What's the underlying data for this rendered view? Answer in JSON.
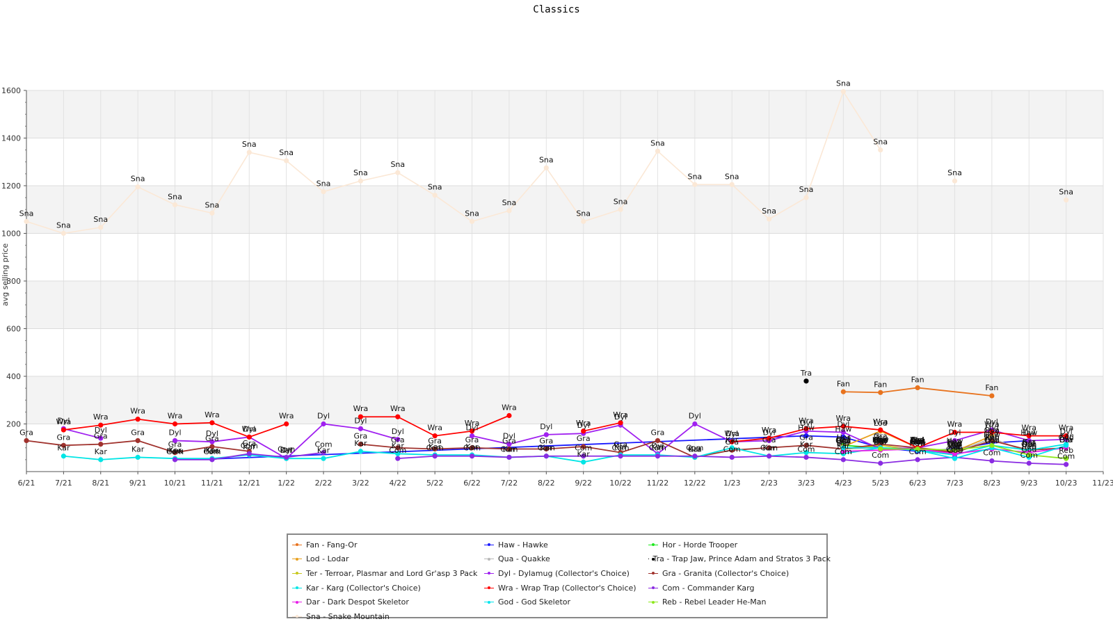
{
  "chart_data": {
    "type": "line",
    "title": "Classics",
    "xlabel": "",
    "ylabel": "avg selling price",
    "ylim": [
      0,
      1600
    ],
    "yticks": [
      200,
      400,
      600,
      800,
      1000,
      1200,
      1400,
      1600
    ],
    "xticks": [
      "6/21",
      "7/21",
      "8/21",
      "9/21",
      "10/21",
      "11/21",
      "12/21",
      "1/22",
      "2/22",
      "3/22",
      "4/22",
      "5/22",
      "6/22",
      "7/22",
      "8/22",
      "9/22",
      "10/22",
      "11/22",
      "12/22",
      "1/23",
      "2/23",
      "3/23",
      "4/23",
      "5/23",
      "6/23",
      "7/23",
      "8/23",
      "9/23",
      "10/23",
      "11/23"
    ],
    "grid": true,
    "legend_position": "bottom",
    "series": [
      {
        "name": "Fan - Fang-Or",
        "label": "Fan",
        "color": "#e8731e",
        "points": [
          [
            22,
            335
          ],
          [
            23,
            332
          ],
          [
            24,
            352
          ],
          [
            26,
            318
          ]
        ]
      },
      {
        "name": "Haw - Hawke",
        "label": "Haw",
        "color": "#1a1aff",
        "points": [
          [
            4,
            53
          ],
          [
            5,
            53
          ],
          [
            21,
            150
          ],
          [
            22,
            145
          ],
          [
            23,
            100
          ],
          [
            24,
            85
          ],
          [
            25,
            95
          ],
          [
            26,
            120
          ],
          [
            27,
            130
          ]
        ]
      },
      {
        "name": "Hor - Horde Trooper",
        "label": "Hor",
        "color": "#1ee81e",
        "points": [
          [
            22,
            110
          ],
          [
            23,
            100
          ],
          [
            24,
            90
          ],
          [
            25,
            85
          ]
        ]
      },
      {
        "name": "Lod - Lodar",
        "label": "Lod",
        "color": "#e8a01e",
        "points": [
          [
            22,
            105
          ],
          [
            23,
            170
          ],
          [
            24,
            100
          ],
          [
            25,
            85
          ],
          [
            26,
            150
          ]
        ]
      },
      {
        "name": "Qua - Quakke",
        "label": "Qua",
        "color": "#b8b8b8",
        "points": [
          [
            22,
            95
          ],
          [
            23,
            100
          ],
          [
            24,
            95
          ],
          [
            25,
            80
          ],
          [
            26,
            140
          ],
          [
            27,
            80
          ]
        ]
      },
      {
        "name": "Tra - Trap Jaw, Prince Adam and Stratos 3 Pack",
        "label": "Tra",
        "color": "#000000",
        "points": [
          [
            21,
            380
          ]
        ]
      },
      {
        "name": "Ter - Terroar, Plasmar and Lord Gr'asp 3 Pack",
        "label": "Ter",
        "color": "#c8c81e",
        "points": [
          [
            22,
            95
          ],
          [
            23,
            110
          ],
          [
            24,
            90
          ],
          [
            25,
            70
          ]
        ]
      },
      {
        "name": "Dyl - Dylamug (Collector's Choice)",
        "label": "Dyl",
        "color": "#a020f0",
        "points": [
          [
            1,
            180
          ],
          [
            2,
            140
          ],
          [
            3,
            null
          ],
          [
            4,
            130
          ],
          [
            5,
            125
          ],
          [
            6,
            145
          ],
          [
            7,
            55
          ],
          [
            8,
            200
          ],
          [
            9,
            180
          ],
          [
            10,
            135
          ],
          [
            11,
            null
          ],
          [
            12,
            150
          ],
          [
            13,
            115
          ],
          [
            14,
            155
          ],
          [
            15,
            160
          ],
          [
            16,
            195
          ],
          [
            17,
            75
          ],
          [
            18,
            200
          ],
          [
            19,
            125
          ],
          [
            20,
            130
          ],
          [
            21,
            170
          ],
          [
            22,
            165
          ],
          [
            23,
            95
          ],
          [
            24,
            100
          ],
          [
            25,
            130
          ],
          [
            26,
            175
          ],
          [
            27,
            130
          ],
          [
            28,
            135
          ]
        ]
      },
      {
        "name": "Gra - Granita (Collector's Choice)",
        "label": "Gra",
        "color": "#a0322d",
        "points": [
          [
            0,
            130
          ],
          [
            1,
            110
          ],
          [
            2,
            115
          ],
          [
            3,
            130
          ],
          [
            4,
            80
          ],
          [
            5,
            105
          ],
          [
            6,
            85
          ],
          [
            7,
            null
          ],
          [
            8,
            null
          ],
          [
            9,
            115
          ],
          [
            10,
            100
          ],
          [
            11,
            95
          ],
          [
            12,
            100
          ],
          [
            13,
            95
          ],
          [
            14,
            95
          ],
          [
            15,
            105
          ],
          [
            16,
            80
          ],
          [
            17,
            130
          ],
          [
            18,
            60
          ],
          [
            19,
            90
          ],
          [
            20,
            100
          ],
          [
            21,
            110
          ],
          [
            22,
            95
          ],
          [
            23,
            115
          ],
          [
            24,
            100
          ],
          [
            25,
            80
          ],
          [
            26,
            130
          ],
          [
            27,
            90
          ],
          [
            28,
            100
          ]
        ]
      },
      {
        "name": "Kar - Karg (Collector's Choice)",
        "label": "Kar",
        "color": "#00e5e5",
        "points": [
          [
            1,
            65
          ],
          [
            2,
            50
          ],
          [
            3,
            60
          ],
          [
            4,
            55
          ],
          [
            5,
            55
          ],
          [
            6,
            70
          ],
          [
            7,
            55
          ],
          [
            8,
            55
          ],
          [
            9,
            85
          ],
          [
            10,
            75
          ],
          [
            11,
            70
          ],
          [
            12,
            70
          ],
          [
            13,
            60
          ],
          [
            14,
            65
          ],
          [
            15,
            40
          ],
          [
            16,
            70
          ],
          [
            17,
            70
          ],
          [
            18,
            60
          ],
          [
            19,
            100
          ],
          [
            20,
            65
          ],
          [
            21,
            80
          ],
          [
            22,
            75
          ],
          [
            23,
            100
          ],
          [
            24,
            90
          ],
          [
            25,
            70
          ],
          [
            26,
            110
          ],
          [
            27,
            90
          ],
          [
            28,
            115
          ]
        ]
      },
      {
        "name": "Wra - Wrap Trap (Collector's Choice)",
        "label": "Wra",
        "color": "#ff0000",
        "points": [
          [
            1,
            175
          ],
          [
            2,
            195
          ],
          [
            3,
            220
          ],
          [
            4,
            200
          ],
          [
            5,
            205
          ],
          [
            6,
            145
          ],
          [
            7,
            200
          ],
          [
            8,
            null
          ],
          [
            9,
            230
          ],
          [
            10,
            230
          ],
          [
            11,
            150
          ],
          [
            12,
            170
          ],
          [
            13,
            235
          ],
          [
            14,
            null
          ],
          [
            15,
            170
          ],
          [
            16,
            205
          ],
          [
            17,
            null
          ],
          [
            18,
            null
          ],
          [
            19,
            125
          ],
          [
            20,
            140
          ],
          [
            21,
            180
          ],
          [
            22,
            190
          ],
          [
            23,
            175
          ],
          [
            24,
            100
          ],
          [
            25,
            165
          ],
          [
            26,
            165
          ],
          [
            27,
            150
          ],
          [
            28,
            150
          ]
        ]
      },
      {
        "name": "Com - Commander Karg",
        "label": "Com",
        "color": "#8a2be2",
        "points": [
          [
            4,
            50
          ],
          [
            5,
            50
          ],
          [
            6,
            75
          ],
          [
            7,
            60
          ],
          [
            8,
            80
          ],
          [
            9,
            null
          ],
          [
            10,
            55
          ],
          [
            11,
            65
          ],
          [
            12,
            65
          ],
          [
            13,
            60
          ],
          [
            14,
            65
          ],
          [
            15,
            65
          ],
          [
            16,
            65
          ],
          [
            17,
            65
          ],
          [
            18,
            65
          ],
          [
            19,
            60
          ],
          [
            20,
            65
          ],
          [
            21,
            60
          ],
          [
            22,
            50
          ],
          [
            23,
            35
          ],
          [
            24,
            50
          ],
          [
            25,
            60
          ],
          [
            26,
            45
          ],
          [
            27,
            35
          ],
          [
            28,
            30
          ]
        ]
      },
      {
        "name": "Dar - Dark Despot Skeletor",
        "label": "Dar",
        "color": "#e81ee8",
        "points": [
          [
            22,
            85
          ],
          [
            23,
            90
          ],
          [
            24,
            95
          ],
          [
            25,
            75
          ],
          [
            26,
            95
          ],
          [
            27,
            80
          ],
          [
            28,
            100
          ]
        ]
      },
      {
        "name": "God - God Skeletor",
        "label": "God",
        "color": "#00e5ee",
        "points": [
          [
            22,
            100
          ],
          [
            23,
            100
          ],
          [
            24,
            90
          ],
          [
            25,
            55
          ],
          [
            26,
            100
          ],
          [
            27,
            60
          ],
          [
            28,
            110
          ]
        ]
      },
      {
        "name": "Reb - Rebel Leader He-Man",
        "label": "Reb",
        "color": "#8ee81e",
        "points": [
          [
            23,
            95
          ],
          [
            24,
            95
          ],
          [
            25,
            90
          ],
          [
            26,
            110
          ],
          [
            27,
            70
          ],
          [
            28,
            55
          ]
        ]
      },
      {
        "name": "Sna - Snake Mountain",
        "label": "Sna",
        "color": "#fbe8d6",
        "points": [
          [
            0,
            1050
          ],
          [
            1,
            1000
          ],
          [
            2,
            1025
          ],
          [
            3,
            1195
          ],
          [
            4,
            1120
          ],
          [
            5,
            1085
          ],
          [
            6,
            1340
          ],
          [
            7,
            1305
          ],
          [
            8,
            1175
          ],
          [
            9,
            1220
          ],
          [
            10,
            1255
          ],
          [
            11,
            1160
          ],
          [
            12,
            1050
          ],
          [
            13,
            1095
          ],
          [
            14,
            1275
          ],
          [
            15,
            1050
          ],
          [
            16,
            1100
          ],
          [
            17,
            1345
          ],
          [
            18,
            1205
          ],
          [
            19,
            1205
          ],
          [
            20,
            1060
          ],
          [
            21,
            1150
          ],
          [
            22,
            1595
          ],
          [
            23,
            1350
          ],
          [
            24,
            null
          ],
          [
            25,
            1220
          ],
          [
            26,
            null
          ],
          [
            27,
            null
          ],
          [
            28,
            1140
          ]
        ]
      }
    ]
  }
}
